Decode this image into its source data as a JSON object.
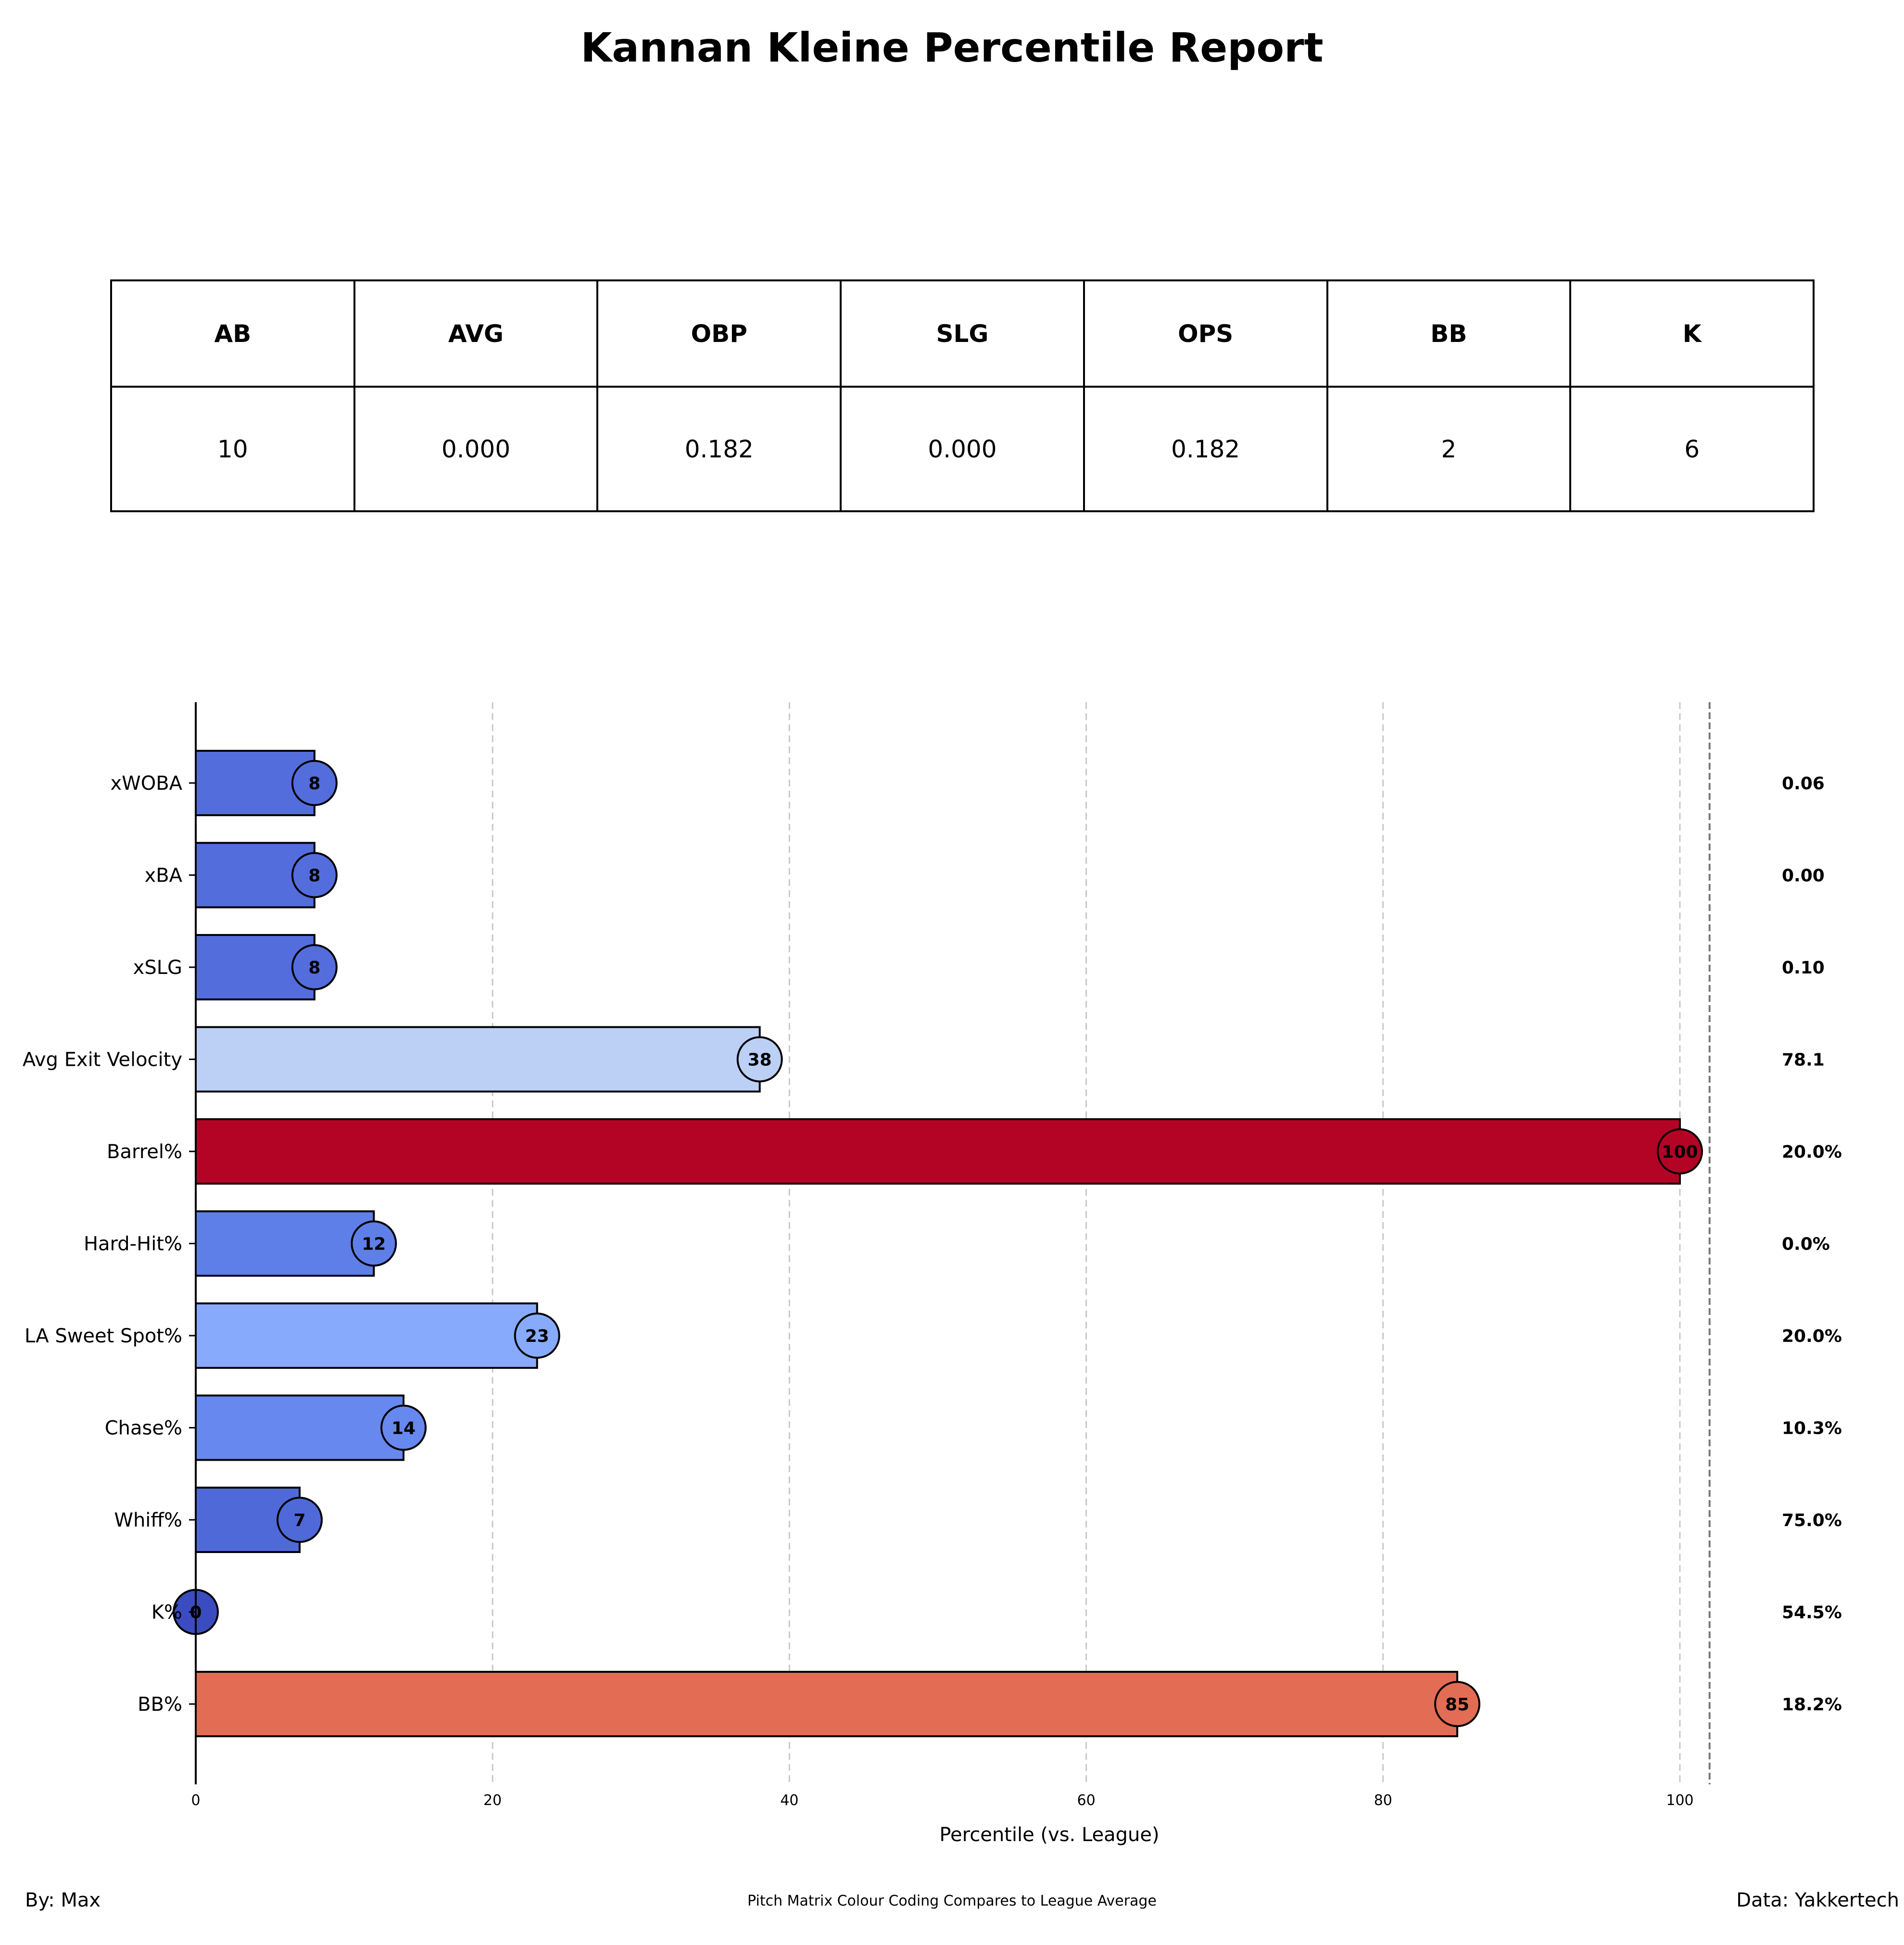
{
  "title": "Kannan Kleine Percentile Report",
  "stats_table": {
    "headers": [
      "AB",
      "AVG",
      "OBP",
      "SLG",
      "OPS",
      "BB",
      "K"
    ],
    "values": [
      "10",
      "0.000",
      "0.182",
      "0.000",
      "0.182",
      "2",
      "6"
    ]
  },
  "chart_data": {
    "type": "bar",
    "orientation": "horizontal",
    "categories": [
      "xWOBA",
      "xBA",
      "xSLG",
      "Avg Exit Velocity",
      "Barrel%",
      "Hard-Hit%",
      "LA Sweet Spot%",
      "Chase%",
      "Whiff%",
      "K%",
      "BB%"
    ],
    "values": [
      8,
      8,
      8,
      38,
      100,
      12,
      23,
      14,
      7,
      0,
      85
    ],
    "value_labels": [
      "8",
      "8",
      "8",
      "38",
      "100",
      "12",
      "23",
      "14",
      "7",
      "0",
      "85"
    ],
    "stat_values": [
      "0.06",
      "0.00",
      "0.10",
      "78.1",
      "20.0%",
      "0.0%",
      "20.0%",
      "10.3%",
      "75.0%",
      "54.5%",
      "18.2%"
    ],
    "bar_colors": [
      "#536ddc",
      "#536ddc",
      "#536ddc",
      "#bcd0f6",
      "#b40426",
      "#5f7fe8",
      "#88aafc",
      "#6788ee",
      "#4f69d9",
      "#3b4cc0",
      "#e36c55"
    ],
    "xlabel": "Percentile (vs. League)",
    "xlim": [
      0,
      102
    ],
    "xticks": [
      0,
      20,
      40,
      60,
      80,
      100
    ],
    "xtick_labels": [
      "0",
      "20",
      "40",
      "60",
      "80",
      "100"
    ],
    "grid": "vertical dashed at 20, 40, 60, 80, 100",
    "reference_line": 102
  },
  "footer": {
    "by": "By: Max",
    "note": "Pitch Matrix Colour Coding Compares to League Average",
    "source": "Data: Yakkertech"
  }
}
